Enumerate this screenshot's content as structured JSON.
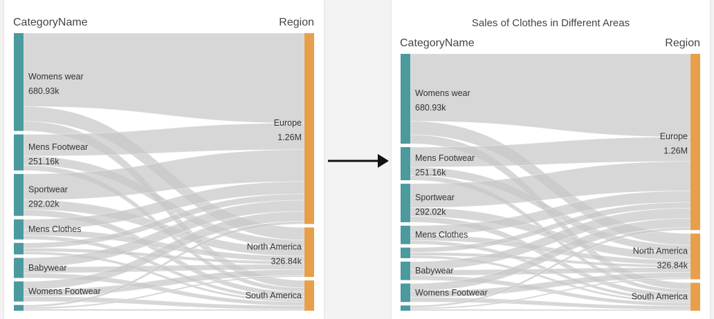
{
  "chart_data": [
    {
      "type": "sankey",
      "title": "",
      "source_header": "CategoryName",
      "target_header": "Region",
      "sources": [
        {
          "name": "Womens wear",
          "value": 680.93,
          "label_value": "680.93k"
        },
        {
          "name": "Mens Footwear",
          "value": 251.16,
          "label_value": "251.16k"
        },
        {
          "name": "Sportwear",
          "value": 292.02,
          "label_value": "292.02k"
        },
        {
          "name": "Mens Clothes",
          "value": 140,
          "label_value": ""
        },
        {
          "name": "",
          "value": 80,
          "label_value": ""
        },
        {
          "name": "Babywear",
          "value": 140,
          "label_value": ""
        },
        {
          "name": "Womens Footwear",
          "value": 140,
          "label_value": ""
        },
        {
          "name": "",
          "value": 40,
          "label_value": ""
        }
      ],
      "targets": [
        {
          "name": "Europe",
          "value": 1260,
          "label_value": "1.26M"
        },
        {
          "name": "North America",
          "value": 326.84,
          "label_value": "326.84k"
        },
        {
          "name": "South America",
          "value": 200,
          "label_value": ""
        }
      ],
      "colors": {
        "source_node": "#4a9a9e",
        "target_node": "#e89f4c",
        "link": "#c8c8c8"
      }
    },
    {
      "type": "sankey",
      "title": "Sales of Clothes in Different Areas",
      "source_header": "CategoryName",
      "target_header": "Region",
      "sources": [
        {
          "name": "Womens wear",
          "value": 680.93,
          "label_value": "680.93k"
        },
        {
          "name": "Mens Footwear",
          "value": 251.16,
          "label_value": "251.16k"
        },
        {
          "name": "Sportwear",
          "value": 292.02,
          "label_value": "292.02k"
        },
        {
          "name": "Mens Clothes",
          "value": 140,
          "label_value": ""
        },
        {
          "name": "",
          "value": 80,
          "label_value": ""
        },
        {
          "name": "Babywear",
          "value": 140,
          "label_value": ""
        },
        {
          "name": "Womens Footwear",
          "value": 140,
          "label_value": ""
        },
        {
          "name": "",
          "value": 40,
          "label_value": ""
        }
      ],
      "targets": [
        {
          "name": "Europe",
          "value": 1260,
          "label_value": "1.26M"
        },
        {
          "name": "North America",
          "value": 326.84,
          "label_value": "326.84k"
        },
        {
          "name": "South America",
          "value": 200,
          "label_value": ""
        }
      ],
      "colors": {
        "source_node": "#4a9a9e",
        "target_node": "#e89f4c",
        "link": "#c8c8c8"
      }
    }
  ]
}
